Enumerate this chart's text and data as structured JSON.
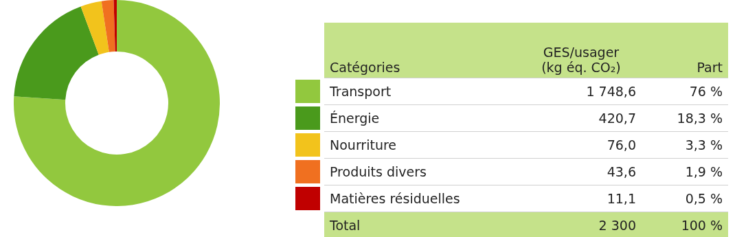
{
  "chart_data": {
    "type": "donut",
    "categories": [
      "Transport",
      "Énergie",
      "Nourriture",
      "Produits divers",
      "Matières résiduelles"
    ],
    "values": [
      1748.6,
      420.7,
      76.0,
      43.6,
      11.1
    ],
    "value_labels": [
      "1 748,6",
      "420,7",
      "76,0",
      "43,6",
      "11,1"
    ],
    "colors": [
      "#92c83e",
      "#4a9a1c",
      "#f2c31c",
      "#f07020",
      "#c00000"
    ],
    "legend": "right",
    "legend_title": "Catégories",
    "annotations": [
      "GES/usager (kg éq. CO₂)",
      "Part",
      "76 %",
      "18,3 %",
      "3,3 %",
      "1,9 %",
      "0,5 %",
      "Total",
      "2 300",
      "100 %"
    ]
  }
}
